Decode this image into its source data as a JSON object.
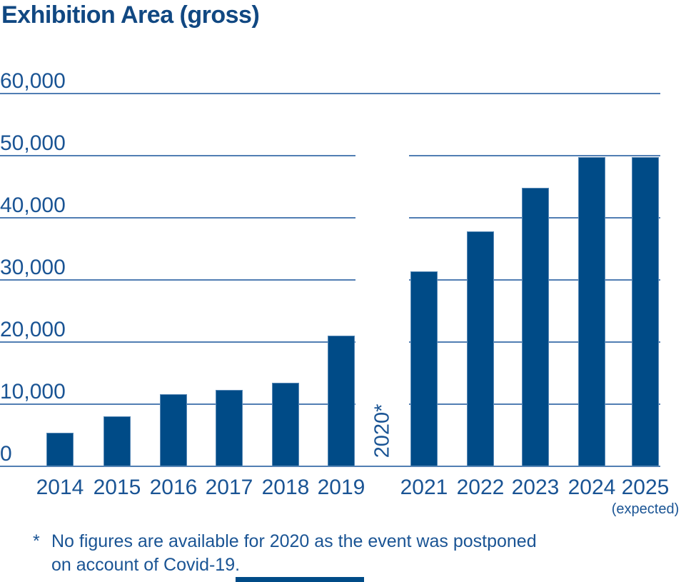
{
  "title": "Exhibition Area (gross)",
  "footnote": {
    "marker": "*",
    "line1": "No figures are available for 2020 as the event was postponed",
    "line2": "on account of Covid-19."
  },
  "colors": {
    "bar": "#004b87",
    "gridline": "#517eb3",
    "title_text": "#114882",
    "label_text": "#1a5494"
  },
  "chart_data": {
    "type": "bar",
    "title": "Exhibition Area (gross)",
    "categories": [
      "2014",
      "2015",
      "2016",
      "2017",
      "2018",
      "2019",
      "2020*",
      "2021",
      "2022",
      "2023",
      "2024",
      "2025"
    ],
    "values": [
      5400,
      8000,
      11600,
      12300,
      13500,
      21000,
      null,
      31400,
      37800,
      44800,
      49800,
      49800
    ],
    "category_sublabels": [
      null,
      null,
      null,
      null,
      null,
      null,
      null,
      null,
      null,
      null,
      null,
      "(expected)"
    ],
    "rotated_category": "2020*",
    "missing_data_category": "2020*",
    "ylim": [
      0,
      60000
    ],
    "ytick_values": [
      0,
      10000,
      20000,
      30000,
      40000,
      50000,
      60000
    ],
    "ytick_labels": [
      "0",
      "10,000",
      "20,000",
      "30,000",
      "40,000",
      "50,000",
      "60,000"
    ],
    "grid": true,
    "legend": false,
    "gridline_gap_for_missing_year": true,
    "footnote": "* No figures are available for 2020 as the event was postponed on account of Covid-19."
  }
}
